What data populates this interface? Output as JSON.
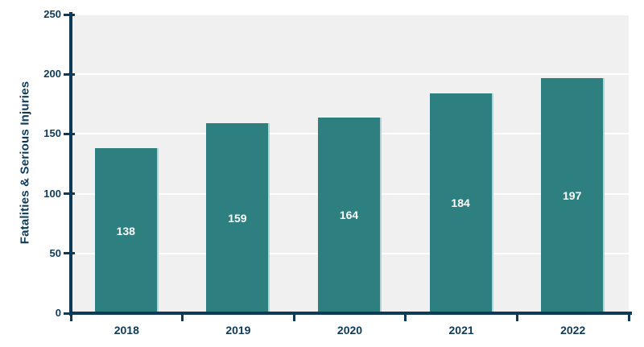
{
  "chart_data": {
    "type": "bar",
    "title": "",
    "categories": [
      "2018",
      "2019",
      "2020",
      "2021",
      "2022"
    ],
    "values": [
      138,
      159,
      164,
      184,
      197
    ],
    "bar_labels": [
      "138",
      "159",
      "164",
      "184",
      "197"
    ],
    "xlabel": "",
    "ylabel": "Fatalities & Serious Injuries",
    "ylim": [
      0,
      250
    ],
    "yticks": [
      0,
      50,
      100,
      150,
      200,
      250
    ],
    "ytick_labels": [
      "0",
      "50",
      "100",
      "150",
      "200",
      "250"
    ],
    "grid": "horizontal gridlines on",
    "legend": "none",
    "colors": {
      "bar": "#2e7f80",
      "bar_edge_highlight": "rgba(255,255,255,0.65)",
      "bar_label": "#ffffff",
      "axis": "#0f3a57",
      "tick_label": "#0f3a57",
      "axis_title": "#0f3a57",
      "plot_background": "#f0f0f0",
      "gridline": "#ffffff",
      "page_background": "#ffffff"
    }
  }
}
